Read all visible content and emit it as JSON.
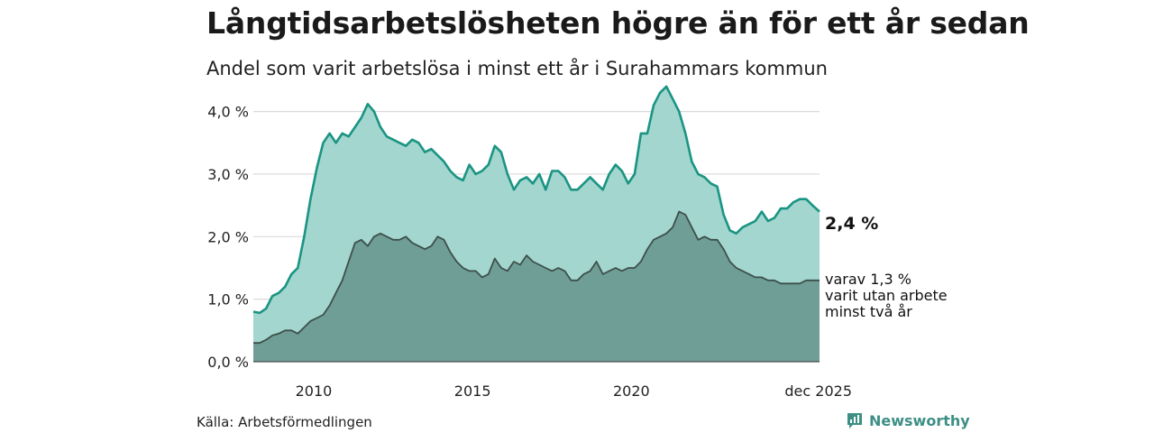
{
  "title": "Långtidsarbetslösheten högre än för ett år sedan",
  "subtitle": "Andel som varit arbetslösa i minst ett år i Surahammars kommun",
  "source": "Källa: Arbetsförmedlingen",
  "brand": {
    "name": "Newsworthy",
    "icon": "newsworthy-logo-icon"
  },
  "colors": {
    "series1_line": "#1a9483",
    "series1_fill": "#a3d6ce",
    "series2_line": "#3d4f4b",
    "series2_fill": "#6f9e96",
    "grid": "#d9d9d9"
  },
  "chart_data": {
    "type": "area",
    "x_unit": "year (decimal)",
    "xlim": [
      2008.1,
      2025.92
    ],
    "ylim": [
      0,
      4.6
    ],
    "y_ticks": [
      0,
      1,
      2,
      3,
      4
    ],
    "y_tick_labels": [
      "0,0 %",
      "1,0 %",
      "2,0 %",
      "3,0 %",
      "4,0 %"
    ],
    "x_ticks": [
      2010,
      2015,
      2020,
      2025.92
    ],
    "x_tick_labels": [
      "2010",
      "2015",
      "2020",
      "dec 2025"
    ],
    "grid": "horizontal",
    "series": [
      {
        "id": "total",
        "end_label": "2,4 %",
        "x": [
          2008.1,
          2008.3,
          2008.5,
          2008.7,
          2008.9,
          2009.1,
          2009.3,
          2009.5,
          2009.7,
          2009.9,
          2010.1,
          2010.3,
          2010.5,
          2010.7,
          2010.9,
          2011.1,
          2011.3,
          2011.5,
          2011.7,
          2011.9,
          2012.1,
          2012.3,
          2012.5,
          2012.7,
          2012.9,
          2013.1,
          2013.3,
          2013.5,
          2013.7,
          2013.9,
          2014.1,
          2014.3,
          2014.5,
          2014.7,
          2014.9,
          2015.1,
          2015.3,
          2015.5,
          2015.7,
          2015.9,
          2016.1,
          2016.3,
          2016.5,
          2016.7,
          2016.9,
          2017.1,
          2017.3,
          2017.5,
          2017.7,
          2017.9,
          2018.1,
          2018.3,
          2018.5,
          2018.7,
          2018.9,
          2019.1,
          2019.3,
          2019.5,
          2019.7,
          2019.9,
          2020.1,
          2020.3,
          2020.5,
          2020.7,
          2020.9,
          2021.1,
          2021.3,
          2021.5,
          2021.7,
          2021.9,
          2022.1,
          2022.3,
          2022.5,
          2022.7,
          2022.9,
          2023.1,
          2023.3,
          2023.5,
          2023.7,
          2023.9,
          2024.1,
          2024.3,
          2024.5,
          2024.7,
          2024.9,
          2025.1,
          2025.3,
          2025.5,
          2025.7,
          2025.92
        ],
        "values": [
          0.8,
          0.78,
          0.85,
          1.05,
          1.1,
          1.2,
          1.4,
          1.5,
          2.0,
          2.6,
          3.1,
          3.5,
          3.65,
          3.5,
          3.65,
          3.6,
          3.75,
          3.9,
          4.12,
          4.0,
          3.75,
          3.6,
          3.55,
          3.5,
          3.45,
          3.55,
          3.5,
          3.35,
          3.4,
          3.3,
          3.2,
          3.05,
          2.95,
          2.9,
          3.15,
          3.0,
          3.05,
          3.15,
          3.45,
          3.35,
          3.0,
          2.75,
          2.9,
          2.95,
          2.85,
          3.0,
          2.75,
          3.05,
          3.05,
          2.95,
          2.75,
          2.75,
          2.85,
          2.95,
          2.85,
          2.75,
          3.0,
          3.15,
          3.05,
          2.85,
          3.0,
          3.65,
          3.65,
          4.1,
          4.3,
          4.4,
          4.2,
          4.0,
          3.65,
          3.2,
          3.0,
          2.95,
          2.85,
          2.8,
          2.35,
          2.1,
          2.05,
          2.15,
          2.2,
          2.25,
          2.4,
          2.25,
          2.3,
          2.45,
          2.45,
          2.55,
          2.6,
          2.6,
          2.5,
          2.4
        ]
      },
      {
        "id": "two_years",
        "end_label": "varav 1,3 % varit utan arbete minst två år",
        "x": [
          2008.1,
          2008.3,
          2008.5,
          2008.7,
          2008.9,
          2009.1,
          2009.3,
          2009.5,
          2009.7,
          2009.9,
          2010.1,
          2010.3,
          2010.5,
          2010.7,
          2010.9,
          2011.1,
          2011.3,
          2011.5,
          2011.7,
          2011.9,
          2012.1,
          2012.3,
          2012.5,
          2012.7,
          2012.9,
          2013.1,
          2013.3,
          2013.5,
          2013.7,
          2013.9,
          2014.1,
          2014.3,
          2014.5,
          2014.7,
          2014.9,
          2015.1,
          2015.3,
          2015.5,
          2015.7,
          2015.9,
          2016.1,
          2016.3,
          2016.5,
          2016.7,
          2016.9,
          2017.1,
          2017.3,
          2017.5,
          2017.7,
          2017.9,
          2018.1,
          2018.3,
          2018.5,
          2018.7,
          2018.9,
          2019.1,
          2019.3,
          2019.5,
          2019.7,
          2019.9,
          2020.1,
          2020.3,
          2020.5,
          2020.7,
          2020.9,
          2021.1,
          2021.3,
          2021.5,
          2021.7,
          2021.9,
          2022.1,
          2022.3,
          2022.5,
          2022.7,
          2022.9,
          2023.1,
          2023.3,
          2023.5,
          2023.7,
          2023.9,
          2024.1,
          2024.3,
          2024.5,
          2024.7,
          2024.9,
          2025.1,
          2025.3,
          2025.5,
          2025.7,
          2025.92
        ],
        "values": [
          0.3,
          0.3,
          0.35,
          0.42,
          0.45,
          0.5,
          0.5,
          0.45,
          0.55,
          0.65,
          0.7,
          0.75,
          0.9,
          1.1,
          1.3,
          1.6,
          1.9,
          1.95,
          1.85,
          2.0,
          2.05,
          2.0,
          1.95,
          1.95,
          2.0,
          1.9,
          1.85,
          1.8,
          1.85,
          2.0,
          1.95,
          1.75,
          1.6,
          1.5,
          1.45,
          1.45,
          1.35,
          1.4,
          1.65,
          1.5,
          1.45,
          1.6,
          1.55,
          1.7,
          1.6,
          1.55,
          1.5,
          1.45,
          1.5,
          1.45,
          1.3,
          1.3,
          1.4,
          1.45,
          1.6,
          1.4,
          1.45,
          1.5,
          1.45,
          1.5,
          1.5,
          1.6,
          1.8,
          1.95,
          2.0,
          2.05,
          2.15,
          2.4,
          2.35,
          2.15,
          1.95,
          2.0,
          1.95,
          1.95,
          1.8,
          1.6,
          1.5,
          1.45,
          1.4,
          1.35,
          1.35,
          1.3,
          1.3,
          1.25,
          1.25,
          1.25,
          1.25,
          1.3,
          1.3,
          1.3
        ]
      }
    ]
  }
}
